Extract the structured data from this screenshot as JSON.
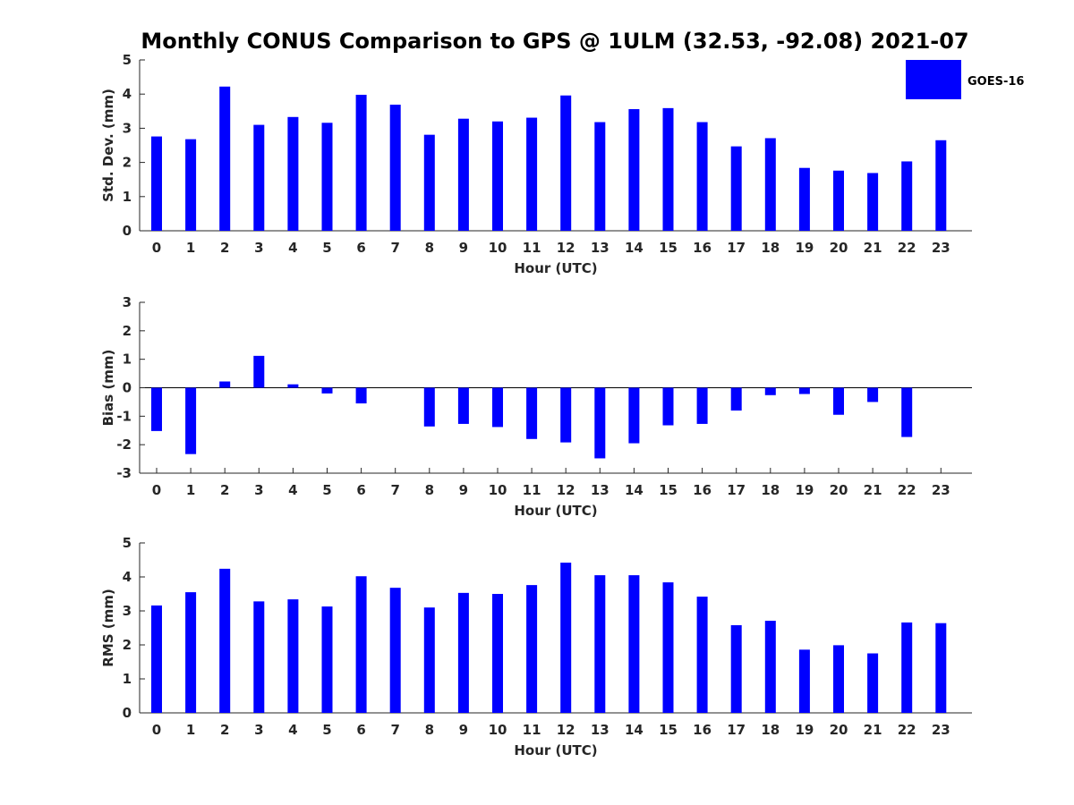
{
  "figure": {
    "title": "Monthly CONUS Comparison to GPS @ 1ULM (32.53, -92.08) 2021-07"
  },
  "legend": {
    "label": "GOES-16",
    "color": "#0000ff",
    "placement": "top-right"
  },
  "chart_data": [
    {
      "type": "bar",
      "ylabel": "Std. Dev. (mm)",
      "xlabel": "Hour (UTC)",
      "ylim": [
        0,
        5
      ],
      "yticks": [
        0,
        1,
        2,
        3,
        4,
        5
      ],
      "categories": [
        "0",
        "1",
        "2",
        "3",
        "4",
        "5",
        "6",
        "7",
        "8",
        "9",
        "10",
        "11",
        "12",
        "13",
        "14",
        "15",
        "16",
        "17",
        "18",
        "19",
        "20",
        "21",
        "22",
        "23"
      ],
      "series": [
        {
          "name": "GOES-16",
          "color": "#0000ff",
          "values": [
            2.76,
            2.68,
            4.22,
            3.1,
            3.33,
            3.16,
            3.98,
            3.69,
            2.81,
            3.28,
            3.2,
            3.31,
            3.96,
            3.18,
            3.56,
            3.59,
            3.18,
            2.47,
            2.71,
            1.84,
            1.76,
            1.69,
            2.03,
            2.65
          ]
        }
      ],
      "grid": false
    },
    {
      "type": "bar",
      "ylabel": "Bias (mm)",
      "xlabel": "Hour (UTC)",
      "ylim": [
        -3,
        3
      ],
      "yticks": [
        -3,
        -2,
        -1,
        0,
        1,
        2,
        3
      ],
      "categories": [
        "0",
        "1",
        "2",
        "3",
        "4",
        "5",
        "6",
        "7",
        "8",
        "9",
        "10",
        "11",
        "12",
        "13",
        "14",
        "15",
        "16",
        "17",
        "18",
        "19",
        "20",
        "21",
        "22",
        "23"
      ],
      "series": [
        {
          "name": "GOES-16",
          "color": "#0000ff",
          "values": [
            -1.52,
            -2.33,
            0.22,
            1.12,
            0.12,
            -0.2,
            -0.55,
            0.0,
            -1.36,
            -1.27,
            -1.38,
            -1.8,
            -1.92,
            -2.48,
            -1.95,
            -1.32,
            -1.27,
            -0.8,
            -0.26,
            -0.22,
            -0.95,
            -0.5,
            -1.73,
            0.0
          ]
        }
      ],
      "grid": false
    },
    {
      "type": "bar",
      "ylabel": "RMS (mm)",
      "xlabel": "Hour (UTC)",
      "ylim": [
        0,
        5
      ],
      "yticks": [
        0,
        1,
        2,
        3,
        4,
        5
      ],
      "categories": [
        "0",
        "1",
        "2",
        "3",
        "4",
        "5",
        "6",
        "7",
        "8",
        "9",
        "10",
        "11",
        "12",
        "13",
        "14",
        "15",
        "16",
        "17",
        "18",
        "19",
        "20",
        "21",
        "22",
        "23"
      ],
      "series": [
        {
          "name": "GOES-16",
          "color": "#0000ff",
          "values": [
            3.16,
            3.55,
            4.24,
            3.28,
            3.34,
            3.13,
            4.02,
            3.68,
            3.1,
            3.53,
            3.5,
            3.76,
            4.42,
            4.05,
            4.05,
            3.84,
            3.42,
            2.58,
            2.71,
            1.86,
            1.99,
            1.75,
            2.66,
            2.64
          ]
        }
      ],
      "grid": false
    }
  ]
}
